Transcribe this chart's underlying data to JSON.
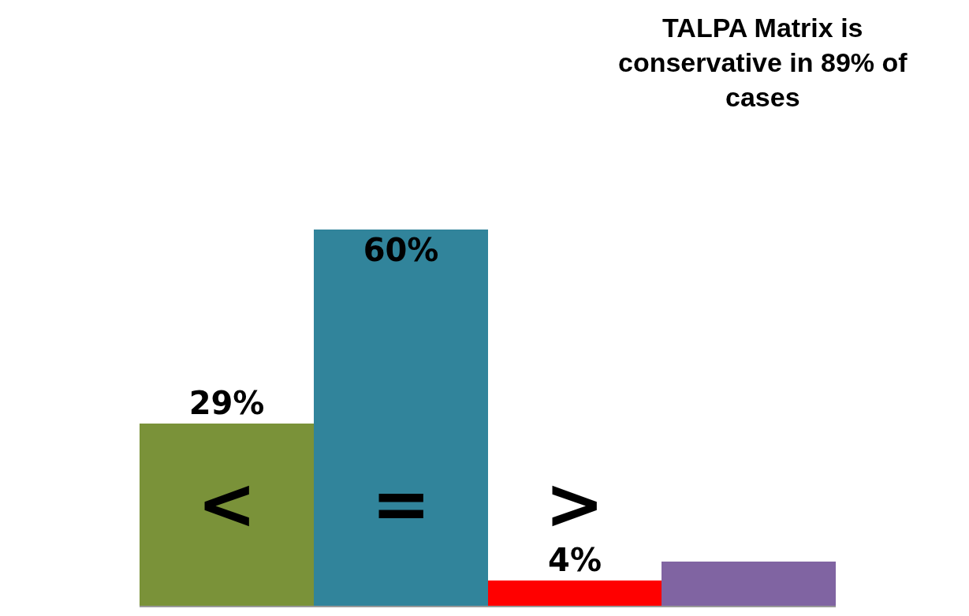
{
  "chart_data": {
    "type": "bar",
    "title": "TALPA Matrix is conservative in 89% of cases",
    "categories": [
      "<",
      "=",
      ">",
      null
    ],
    "values": [
      29,
      60,
      4,
      7
    ],
    "colors": [
      "#7a9239",
      "#31849b",
      "#ff0000",
      "#8064a2"
    ],
    "value_labels": [
      "29%",
      "60%",
      "4%",
      null
    ],
    "legend": false
  }
}
